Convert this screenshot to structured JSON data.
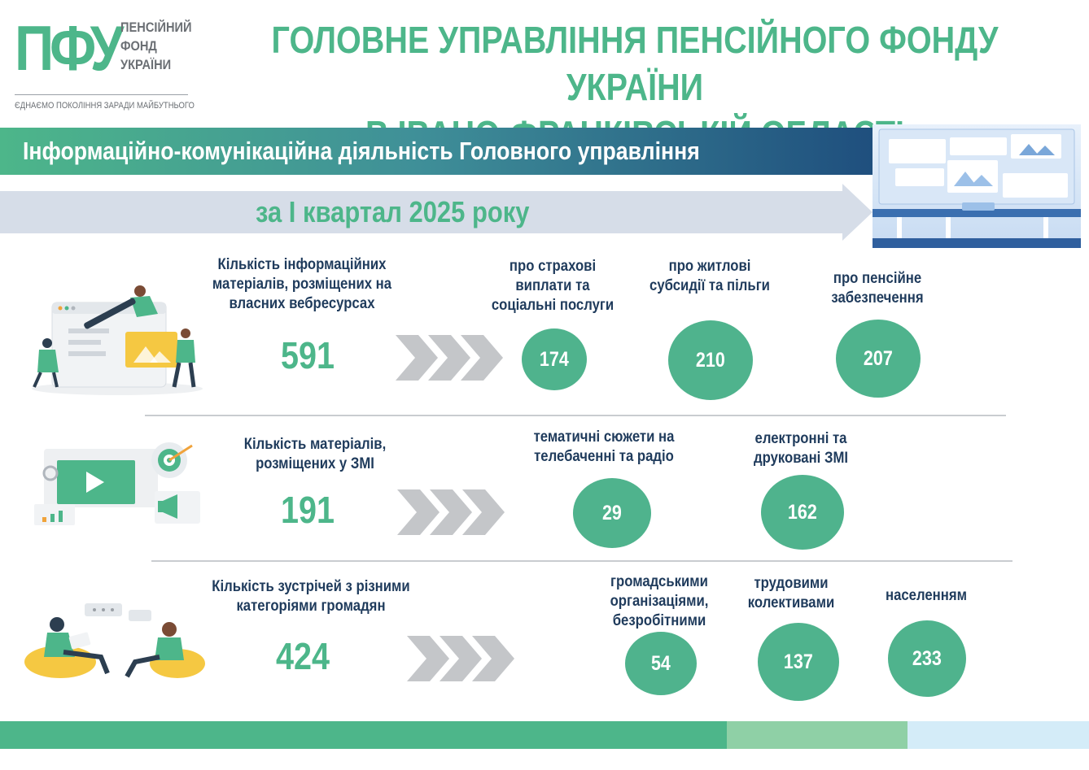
{
  "header": {
    "logo_mark": "ПФУ",
    "logo_words": [
      "ПЕНСІЙНИЙ",
      "ФОНД",
      "УКРАЇНИ"
    ],
    "logo_tagline": "ЄДНАЄМО ПОКОЛІННЯ ЗАРАДИ МАЙБУТНЬОГО",
    "title_line1": "ГОЛОВНЕ УПРАВЛІННЯ ПЕНСІЙНОГО ФОНДУ УКРАЇНИ",
    "title_line2": "В ІВАНО-ФРАНКІВСЬКІЙ ОБЛАСТІ"
  },
  "banner": {
    "title": "Інформаційно-комунікаційна діяльність Головного управління",
    "period": "за І квартал 2025 року"
  },
  "rows": [
    {
      "label": "Кількість інформаційних матеріалів, розміщених на власних вебресурсах",
      "total": "591",
      "illustration": "web-content-team-illustration",
      "items": [
        {
          "label": "про страхові виплати та соціальні послуги",
          "value": "174"
        },
        {
          "label": "про житлові субсидії та пільги",
          "value": "210"
        },
        {
          "label": "про пенсійне забезпечення",
          "value": "207"
        }
      ]
    },
    {
      "label": "Кількість матеріалів, розміщених у ЗМІ",
      "total": "191",
      "illustration": "media-marketing-illustration",
      "items": [
        {
          "label": "тематичні сюжети на телебаченні та радіо",
          "value": "29"
        },
        {
          "label": "електронні та друковані ЗМІ",
          "value": "162"
        }
      ]
    },
    {
      "label": "Кількість зустрічей з різними категоріями громадян",
      "total": "424",
      "illustration": "people-conversation-illustration",
      "items": [
        {
          "label": "громадськими організаціями, безробітними",
          "value": "54"
        },
        {
          "label": "трудовими колективами",
          "value": "137"
        },
        {
          "label": "населенням",
          "value": "233"
        }
      ]
    }
  ],
  "colors": {
    "accent_green": "#4db68a",
    "navy_text": "#1f3b5c",
    "banner_end": "#1f4f7e",
    "arrow_band": "#d6dde8",
    "chevron": "#c4c6c9"
  }
}
